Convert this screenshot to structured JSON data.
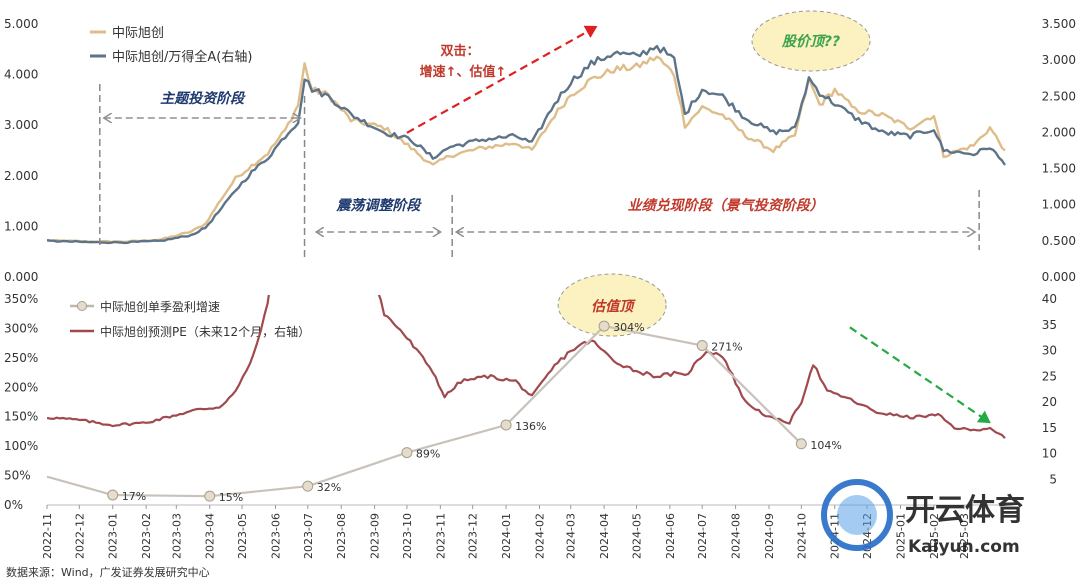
{
  "chart_data": [
    {
      "type": "line",
      "legend_position": "top-left",
      "y_left_ticks": [
        "0.000",
        "1.000",
        "2.000",
        "3.000",
        "4.000",
        "5.000"
      ],
      "y_left_range": [
        0,
        5
      ],
      "y_right_ticks": [
        "0.000",
        "0.500",
        "1.000",
        "1.500",
        "2.000",
        "2.500",
        "3.000",
        "3.500"
      ],
      "y_right_range": [
        0,
        3.5
      ],
      "series": [
        {
          "name": "中际旭创",
          "axis": "left",
          "color": "#dfbd8a",
          "anchors": [
            [
              "2022-11-01",
              0.72
            ],
            [
              "2022-12-15",
              0.7
            ],
            [
              "2023-01-15",
              0.7
            ],
            [
              "2023-02-15",
              0.74
            ],
            [
              "2023-03-15",
              0.9
            ],
            [
              "2023-03-28",
              1.05
            ],
            [
              "2023-04-12",
              1.55
            ],
            [
              "2023-04-25",
              1.95
            ],
            [
              "2023-05-10",
              2.2
            ],
            [
              "2023-05-25",
              2.45
            ],
            [
              "2023-06-10",
              2.9
            ],
            [
              "2023-06-22",
              3.4
            ],
            [
              "2023-06-28",
              4.2
            ],
            [
              "2023-07-05",
              3.7
            ],
            [
              "2023-07-20",
              3.6
            ],
            [
              "2023-08-10",
              3.1
            ],
            [
              "2023-09-10",
              2.95
            ],
            [
              "2023-10-05",
              2.55
            ],
            [
              "2023-10-25",
              2.2
            ],
            [
              "2023-11-10",
              2.4
            ],
            [
              "2023-12-10",
              2.55
            ],
            [
              "2024-01-10",
              2.65
            ],
            [
              "2024-01-25",
              2.5
            ],
            [
              "2024-02-15",
              3.2
            ],
            [
              "2024-03-01",
              3.6
            ],
            [
              "2024-03-20",
              3.9
            ],
            [
              "2024-04-10",
              4.1
            ],
            [
              "2024-05-01",
              4.15
            ],
            [
              "2024-05-20",
              4.35
            ],
            [
              "2024-06-05",
              4.0
            ],
            [
              "2024-06-15",
              3.0
            ],
            [
              "2024-07-01",
              3.35
            ],
            [
              "2024-07-20",
              3.2
            ],
            [
              "2024-08-10",
              2.8
            ],
            [
              "2024-09-05",
              2.5
            ],
            [
              "2024-09-25",
              2.8
            ],
            [
              "2024-10-08",
              3.9
            ],
            [
              "2024-10-18",
              3.4
            ],
            [
              "2024-11-01",
              3.7
            ],
            [
              "2024-11-20",
              3.3
            ],
            [
              "2024-12-15",
              3.2
            ],
            [
              "2025-01-10",
              2.95
            ],
            [
              "2025-02-01",
              3.2
            ],
            [
              "2025-02-10",
              2.4
            ],
            [
              "2025-03-10",
              2.6
            ],
            [
              "2025-03-25",
              2.95
            ],
            [
              "2025-04-08",
              2.5
            ]
          ]
        },
        {
          "name": "中际旭创/万得全A(右轴)",
          "axis": "right",
          "color": "#5d7388",
          "anchors": [
            [
              "2022-11-01",
              0.5
            ],
            [
              "2022-12-15",
              0.48
            ],
            [
              "2023-01-15",
              0.48
            ],
            [
              "2023-02-15",
              0.5
            ],
            [
              "2023-03-15",
              0.58
            ],
            [
              "2023-03-28",
              0.68
            ],
            [
              "2023-04-12",
              0.95
            ],
            [
              "2023-04-25",
              1.2
            ],
            [
              "2023-05-10",
              1.45
            ],
            [
              "2023-05-25",
              1.65
            ],
            [
              "2023-06-10",
              1.95
            ],
            [
              "2023-06-22",
              2.15
            ],
            [
              "2023-06-28",
              2.75
            ],
            [
              "2023-07-05",
              2.6
            ],
            [
              "2023-07-20",
              2.5
            ],
            [
              "2023-08-10",
              2.25
            ],
            [
              "2023-09-10",
              2.0
            ],
            [
              "2023-10-05",
              1.9
            ],
            [
              "2023-10-25",
              1.65
            ],
            [
              "2023-11-10",
              1.8
            ],
            [
              "2023-12-10",
              1.9
            ],
            [
              "2024-01-10",
              1.95
            ],
            [
              "2024-01-25",
              1.85
            ],
            [
              "2024-02-15",
              2.4
            ],
            [
              "2024-03-01",
              2.7
            ],
            [
              "2024-03-20",
              2.95
            ],
            [
              "2024-04-10",
              3.1
            ],
            [
              "2024-05-01",
              3.05
            ],
            [
              "2024-05-20",
              3.2
            ],
            [
              "2024-06-05",
              3.0
            ],
            [
              "2024-06-15",
              2.25
            ],
            [
              "2024-07-01",
              2.6
            ],
            [
              "2024-07-20",
              2.5
            ],
            [
              "2024-08-10",
              2.2
            ],
            [
              "2024-09-05",
              2.0
            ],
            [
              "2024-09-25",
              2.05
            ],
            [
              "2024-10-08",
              2.75
            ],
            [
              "2024-10-18",
              2.55
            ],
            [
              "2024-11-01",
              2.4
            ],
            [
              "2024-11-20",
              2.2
            ],
            [
              "2024-12-15",
              2.0
            ],
            [
              "2025-01-10",
              1.95
            ],
            [
              "2025-02-01",
              2.05
            ],
            [
              "2025-02-10",
              1.75
            ],
            [
              "2025-03-10",
              1.7
            ],
            [
              "2025-03-25",
              1.8
            ],
            [
              "2025-04-08",
              1.55
            ]
          ]
        }
      ],
      "annotations": {
        "phase_theme": "主题投资阶段",
        "phase_shock": "震荡调整阶段",
        "phase_growth": "业绩兑现阶段（景气投资阶段）",
        "double_hit_title": "双击：",
        "double_hit_sub": "增速↑、估值↑",
        "price_top": "股价顶??"
      },
      "phase_dates": {
        "theme_start": "2022-12-20",
        "theme_end": "2023-06-28",
        "shock_start": "2023-07-05",
        "shock_end": "2023-11-05",
        "growth_start": "2023-11-12",
        "growth_end": "2025-03-15",
        "arrow_start": "2023-10-01",
        "arrow_end": "2024-03-25",
        "price_top": "2024-10-10"
      }
    },
    {
      "type": "line",
      "legend_position": "top-left",
      "y_left_ticks": [
        "0%",
        "50%",
        "100%",
        "150%",
        "200%",
        "250%",
        "300%",
        "350%"
      ],
      "y_left_range": [
        0,
        350
      ],
      "y_right_ticks": [
        "5",
        "10",
        "15",
        "20",
        "25",
        "30",
        "35",
        "40"
      ],
      "y_right_range": [
        0,
        40
      ],
      "x_tick_labels": [
        "2022-11",
        "2022-12",
        "2023-01",
        "2023-02",
        "2023-03",
        "2023-04",
        "2023-05",
        "2023-06",
        "2023-07",
        "2023-08",
        "2023-09",
        "2023-10",
        "2023-11",
        "2023-12",
        "2024-01",
        "2024-02",
        "2024-03",
        "2024-04",
        "2024-05",
        "2024-06",
        "2024-07",
        "2024-08",
        "2024-09",
        "2024-10",
        "2024-11",
        "2024-12",
        "2025-01",
        "2025-02",
        "2025-03"
      ],
      "series": [
        {
          "name": "中际旭创单季盈利增速",
          "axis": "left",
          "color": "#bfb7ae",
          "points": [
            {
              "x": "2022-11-01",
              "y": 48,
              "label": ""
            },
            {
              "x": "2023-01-01",
              "y": 17,
              "label": "17%"
            },
            {
              "x": "2023-04-01",
              "y": 15,
              "label": "15%"
            },
            {
              "x": "2023-07-01",
              "y": 32,
              "label": "32%"
            },
            {
              "x": "2023-10-01",
              "y": 89,
              "label": "89%"
            },
            {
              "x": "2024-01-01",
              "y": 136,
              "label": "136%"
            },
            {
              "x": "2024-04-01",
              "y": 304,
              "label": "304%"
            },
            {
              "x": "2024-07-01",
              "y": 271,
              "label": "271%"
            },
            {
              "x": "2024-10-01",
              "y": 104,
              "label": "104%"
            }
          ]
        },
        {
          "name": "中际旭创预测PE（未来12个月，右轴）",
          "axis": "right",
          "color": "#a04a4f",
          "anchors": [
            [
              "2022-11-01",
              17.0
            ],
            [
              "2022-12-01",
              16.5
            ],
            [
              "2023-01-01",
              15.5
            ],
            [
              "2023-02-01",
              16.0
            ],
            [
              "2023-03-01",
              17.5
            ],
            [
              "2023-03-20",
              18.5
            ],
            [
              "2023-04-10",
              19.0
            ],
            [
              "2023-04-25",
              22.0
            ],
            [
              "2023-05-05",
              26.0
            ],
            [
              "2023-05-15",
              31.0
            ],
            [
              "2023-05-22",
              37.0
            ],
            [
              "2023-05-30",
              45.0
            ],
            [
              "2023-06-10",
              44.0
            ],
            [
              "2023-06-22",
              41.0
            ],
            [
              "2023-07-10",
              52.0
            ],
            [
              "2023-08-10",
              48.0
            ],
            [
              "2023-08-31",
              45.0
            ],
            [
              "2023-09-10",
              37.0
            ],
            [
              "2023-09-25",
              34.0
            ],
            [
              "2023-10-10",
              30.0
            ],
            [
              "2023-10-25",
              26.0
            ],
            [
              "2023-11-05",
              21.0
            ],
            [
              "2023-11-20",
              24.0
            ],
            [
              "2023-12-15",
              25.0
            ],
            [
              "2024-01-10",
              24.0
            ],
            [
              "2024-01-25",
              21.0
            ],
            [
              "2024-02-15",
              27.0
            ],
            [
              "2024-03-01",
              30.0
            ],
            [
              "2024-03-20",
              32.0
            ],
            [
              "2024-04-10",
              28.0
            ],
            [
              "2024-05-01",
              26.0
            ],
            [
              "2024-05-20",
              25.0
            ],
            [
              "2024-06-05",
              25.5
            ],
            [
              "2024-06-15",
              25.0
            ],
            [
              "2024-07-05",
              30.0
            ],
            [
              "2024-07-20",
              29.0
            ],
            [
              "2024-08-10",
              20.0
            ],
            [
              "2024-09-01",
              17.0
            ],
            [
              "2024-09-20",
              16.0
            ],
            [
              "2024-10-01",
              20.0
            ],
            [
              "2024-10-12",
              27.5
            ],
            [
              "2024-10-25",
              22.0
            ],
            [
              "2024-11-10",
              21.0
            ],
            [
              "2024-12-10",
              18.0
            ],
            [
              "2025-01-10",
              17.0
            ],
            [
              "2025-02-05",
              17.5
            ],
            [
              "2025-02-20",
              15.0
            ],
            [
              "2025-03-10",
              14.5
            ],
            [
              "2025-03-25",
              15.0
            ],
            [
              "2025-04-08",
              13.0
            ]
          ]
        }
      ],
      "annotations": {
        "valuation_top": "估值顶"
      },
      "arrow_dates": {
        "start": "2024-11-15",
        "end": "2025-03-25"
      }
    }
  ],
  "source_text": "数据来源：Wind，广发证券发展研究中心",
  "watermark": {
    "text": "开云体育",
    "sub": "Kaiyun.com"
  }
}
